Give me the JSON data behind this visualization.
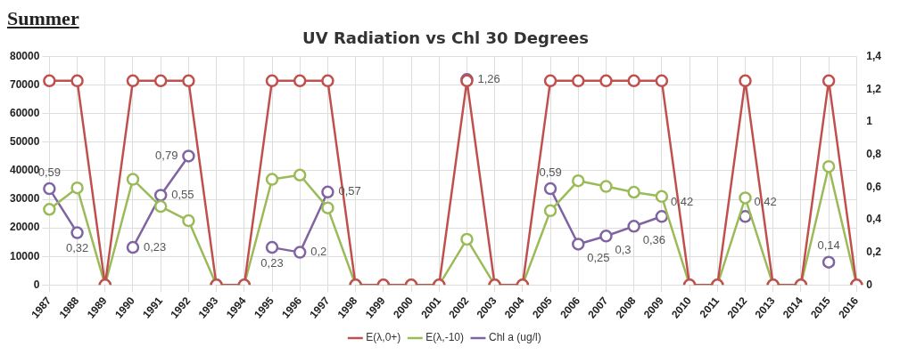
{
  "chart_data": {
    "type": "line",
    "title": "UV Radiation vs Chl 30 Degrees",
    "subtitle": "Summer",
    "categories": [
      "1987",
      "1988",
      "1989",
      "1990",
      "1991",
      "1992",
      "1993",
      "1994",
      "1995",
      "1996",
      "1997",
      "1998",
      "1999",
      "2000",
      "2001",
      "2002",
      "2003",
      "2004",
      "2005",
      "2006",
      "2007",
      "2008",
      "2009",
      "2010",
      "2011",
      "2012",
      "2013",
      "2014",
      "2015",
      "2016"
    ],
    "series": [
      {
        "name": "E(λ,0+)",
        "color": "#c0504d",
        "values": [
          71500,
          71500,
          0,
          71500,
          71500,
          71500,
          0,
          0,
          71500,
          71500,
          71500,
          0,
          0,
          0,
          0,
          71500,
          0,
          0,
          71500,
          71500,
          71500,
          71500,
          71500,
          0,
          0,
          71500,
          0,
          0,
          71500,
          0
        ]
      },
      {
        "name": "E(λ,-10)",
        "color": "#9bbb59",
        "values": [
          26500,
          34000,
          0,
          37000,
          27500,
          22500,
          0,
          0,
          37000,
          38500,
          27000,
          0,
          0,
          0,
          0,
          16000,
          0,
          0,
          26000,
          36500,
          34500,
          32500,
          31000,
          0,
          0,
          30500,
          0,
          0,
          41500,
          0
        ]
      },
      {
        "name": "Chl a (ug/l)",
        "color": "#8064a2",
        "axis": "y2",
        "values": [
          0.59,
          0.32,
          null,
          0.23,
          0.55,
          0.79,
          null,
          null,
          0.23,
          0.2,
          0.57,
          null,
          null,
          null,
          null,
          1.26,
          null,
          null,
          0.59,
          0.25,
          0.3,
          0.36,
          0.42,
          null,
          null,
          0.42,
          null,
          null,
          0.14,
          null
        ],
        "value_labels": [
          "0,59",
          "0,32",
          null,
          "0,23",
          "0,55",
          "0,79",
          null,
          null,
          "0,23",
          "0,2",
          "0,57",
          null,
          null,
          null,
          null,
          "1,26",
          null,
          null,
          "0,59",
          "0,25",
          "0,3",
          "0,36",
          "0,42",
          null,
          null,
          "0,42",
          null,
          null,
          "0,14",
          null
        ]
      }
    ],
    "ylim": [
      0,
      80000
    ],
    "yticks": [
      0,
      10000,
      20000,
      30000,
      40000,
      50000,
      60000,
      70000,
      80000
    ],
    "y2lim": [
      0,
      1.4
    ],
    "y2ticks": [
      0,
      {
        "value": 0.2,
        "label": "0,2"
      },
      {
        "value": 0.4,
        "label": "0,4"
      },
      {
        "value": 0.6,
        "label": "0,6"
      },
      {
        "value": 0.8,
        "label": "0,8"
      },
      1,
      {
        "value": 1.2,
        "label": "1,2"
      },
      {
        "value": 1.4,
        "label": "1,4"
      }
    ],
    "grid": true,
    "legend": "bottom",
    "marker": "circle",
    "line_style": "solid"
  }
}
